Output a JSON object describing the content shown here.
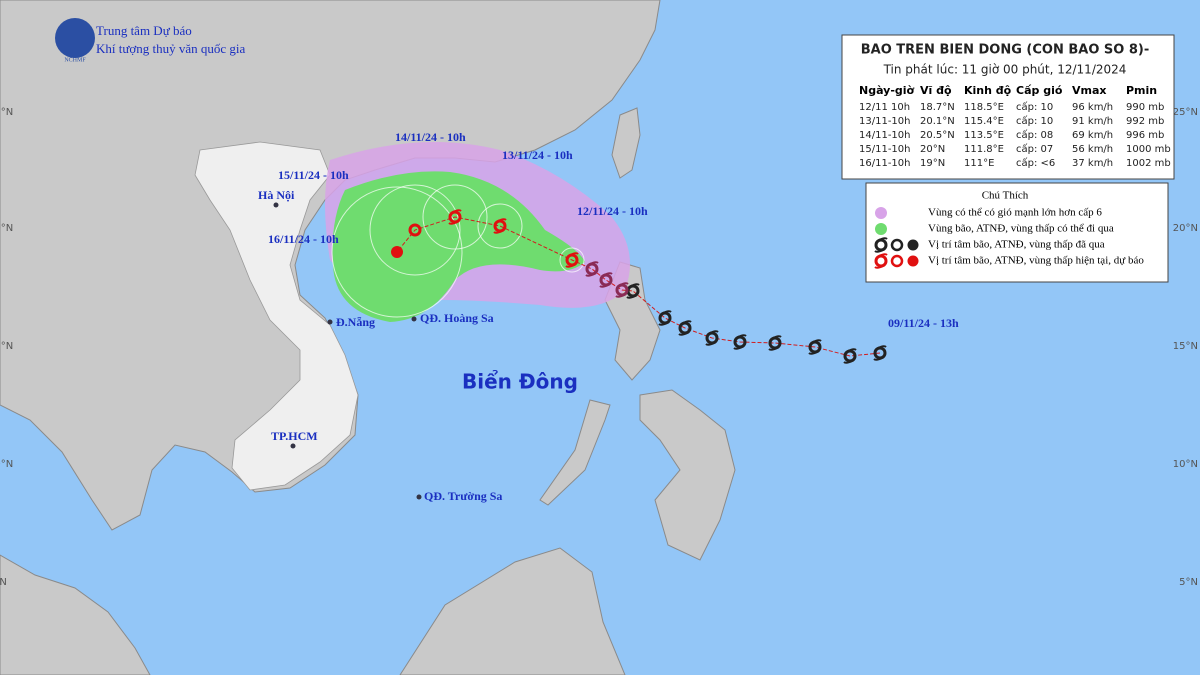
{
  "header": {
    "org_line1": "Trung tâm Dự báo",
    "org_line2": "Khí tượng thuỷ văn quốc gia",
    "logo": "NCHMF"
  },
  "map_labels": {
    "track_times": [
      "14/11/24 - 10h",
      "13/11/24 - 10h",
      "15/11/24 - 10h",
      "12/11/24 - 10h",
      "16/11/24 - 10h",
      "09/11/24 - 13h"
    ],
    "places": [
      "Hà Nội",
      "Đ.Nẵng",
      "QĐ. Hoàng Sa",
      "TP.HCM",
      "QĐ. Trường Sa"
    ],
    "sea": "Biển Đông",
    "latitudes": [
      "25°N",
      "20°N",
      "15°N",
      "10°N",
      "5°N"
    ]
  },
  "bulletin": {
    "title": "BAO TREN BIEN DONG (CON BAO SO 8)-",
    "issued": "Tin phát lúc: 11 giờ 00 phút, 12/11/2024",
    "columns": [
      "Ngày-giờ",
      "Vĩ độ",
      "Kinh độ",
      "Cấp gió",
      "Vmax",
      "Pmin"
    ],
    "rows": [
      [
        "12/11 10h",
        "18.7°N",
        "118.5°E",
        "cấp: 10",
        "96 km/h",
        "990 mb"
      ],
      [
        "13/11-10h",
        "20.1°N",
        "115.4°E",
        "cấp: 10",
        "91 km/h",
        "992 mb"
      ],
      [
        "14/11-10h",
        "20.5°N",
        "113.5°E",
        "cấp: 08",
        "69 km/h",
        "996 mb"
      ],
      [
        "15/11-10h",
        "20°N",
        "111.8°E",
        "cấp: 07",
        "56 km/h",
        "1000 mb"
      ],
      [
        "16/11-10h",
        "19°N",
        "111°E",
        "cấp: <6",
        "37 km/h",
        "1002 mb"
      ]
    ]
  },
  "legend": {
    "title": "Chú Thích",
    "items": [
      "Vùng có thể có gió mạnh lớn hơn cấp 6",
      "Vùng bão, ATNĐ, vùng thấp có thể đi qua",
      "Vị trí tâm bão, ATNĐ, vùng thấp đã qua",
      "Vị trí tâm bão, ATNĐ, vùng thấp hiện tại, dự báo"
    ]
  }
}
